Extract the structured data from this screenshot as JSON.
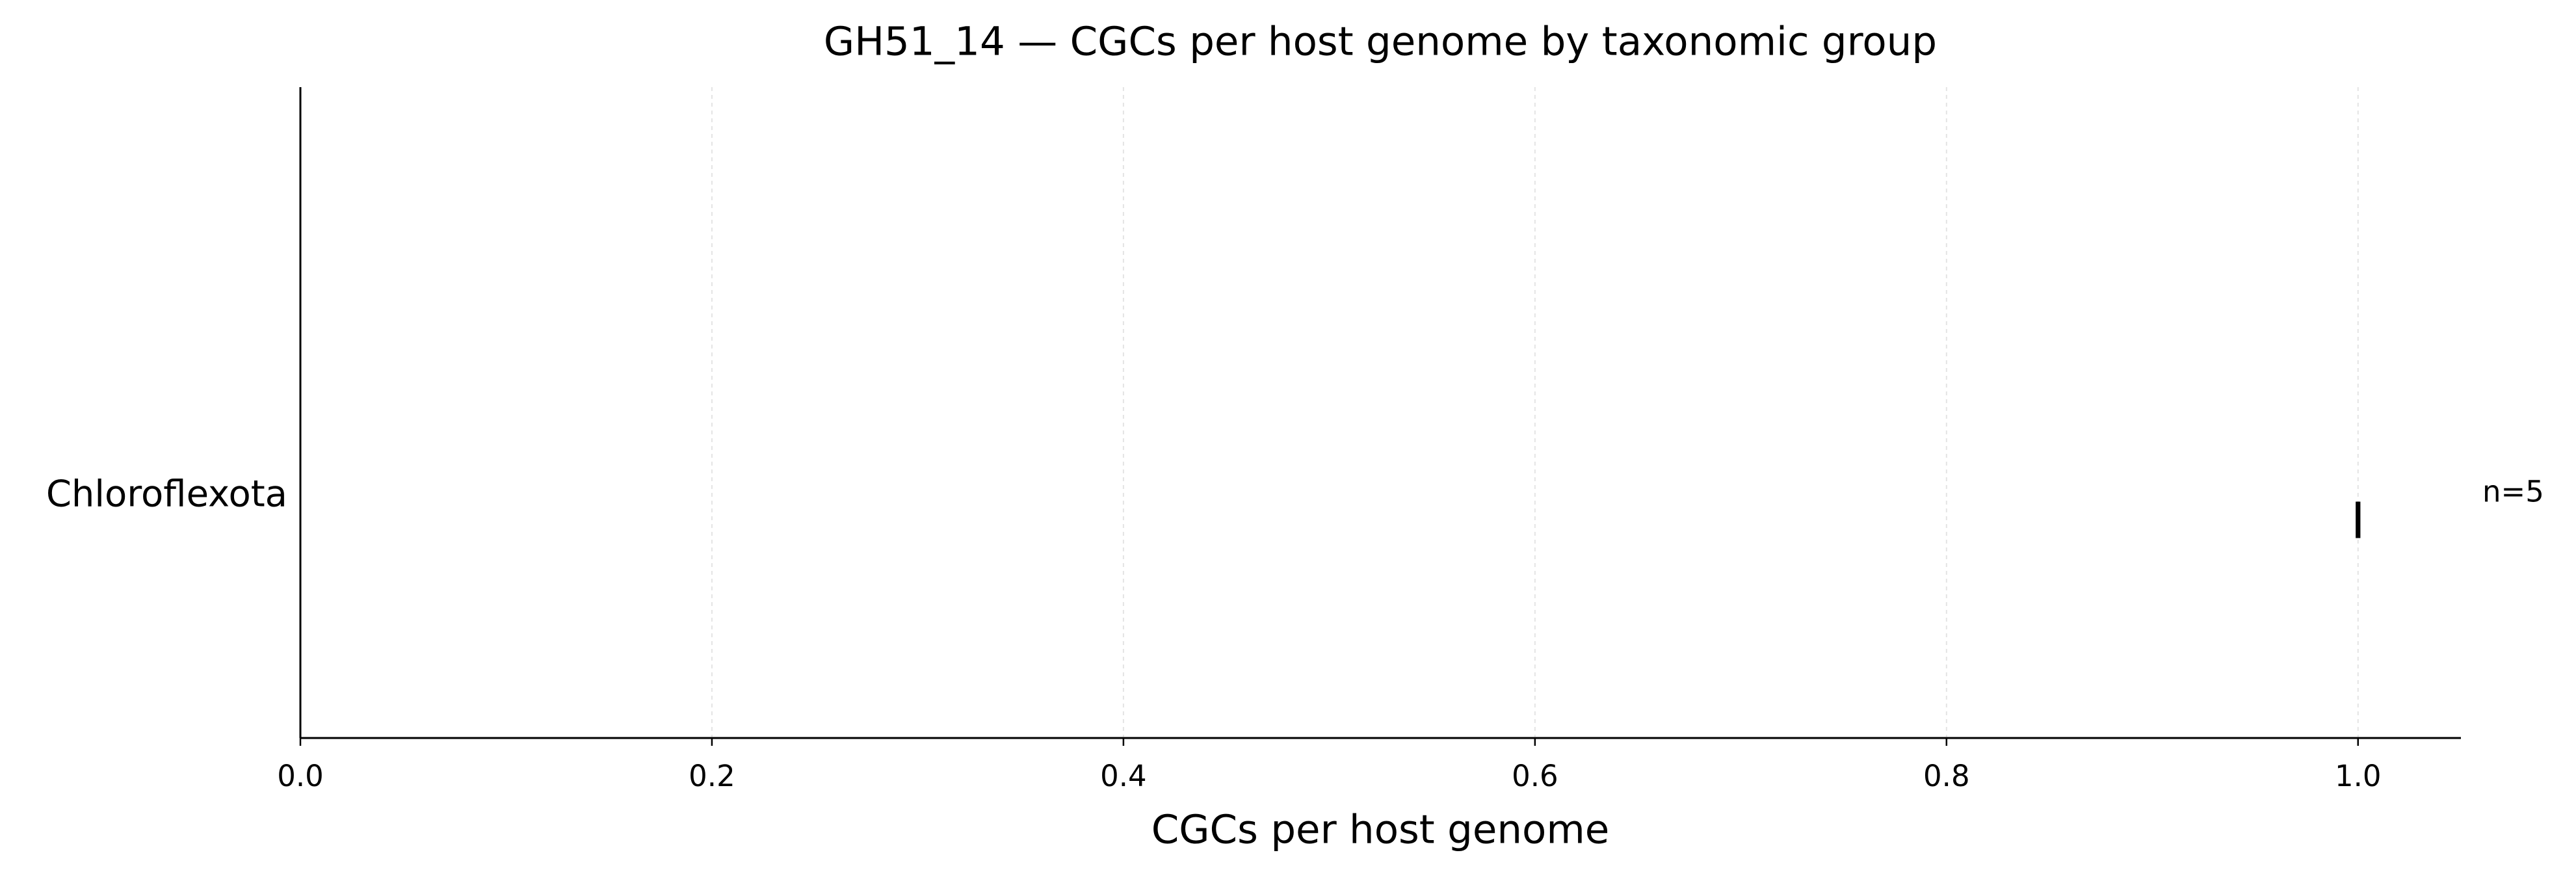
{
  "chart_data": {
    "type": "box",
    "title": "GH51_14 — CGCs per host genome by taxonomic group",
    "xlabel": "CGCs per host genome",
    "categories": [
      "Chloroflexota"
    ],
    "boxes": [
      {
        "min": 1.0,
        "q1": 1.0,
        "median": 1.0,
        "q3": 1.0,
        "max": 1.0
      }
    ],
    "annotations": [
      "n=5"
    ],
    "color": "#000000",
    "xlim": [
      0,
      1.05
    ],
    "xticks": [
      {
        "value": 0,
        "label": "0.0"
      },
      {
        "value": 0.2,
        "label": "0.2"
      },
      {
        "value": 0.4,
        "label": "0.4"
      },
      {
        "value": 0.6,
        "label": "0.6"
      },
      {
        "value": 0.8,
        "label": "0.8"
      },
      {
        "value": 1.0,
        "label": "1.0"
      }
    ],
    "grid": true
  }
}
